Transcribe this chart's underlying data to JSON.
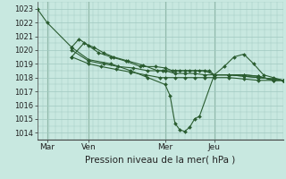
{
  "background_color": "#c8e8e0",
  "plot_bg_color": "#c8e8e0",
  "grid_color": "#a0c8c0",
  "line_color": "#2a5c30",
  "marker_color": "#2a5c30",
  "ylim": [
    1013.5,
    1023.5
  ],
  "yticks": [
    1014,
    1015,
    1016,
    1017,
    1018,
    1019,
    1020,
    1021,
    1022,
    1023
  ],
  "xlabel": "Pression niveau de la mer( hPa )",
  "xtick_labels": [
    "Mar",
    "Ven",
    "Mer",
    "Jeu"
  ],
  "xtick_positions": [
    0.04,
    0.21,
    0.52,
    0.72
  ],
  "vline_positions": [
    0.04,
    0.21,
    0.52,
    0.72
  ],
  "lines": [
    {
      "x": [
        0.0,
        0.04,
        0.14,
        0.21,
        0.3,
        0.38,
        0.45,
        0.52,
        0.54,
        0.56,
        0.58,
        0.6,
        0.62,
        0.64,
        0.66,
        0.72,
        0.78,
        0.84,
        0.9,
        0.96,
        1.0
      ],
      "y": [
        1023,
        1022,
        1020.2,
        1019.3,
        1019.0,
        1018.5,
        1018.0,
        1017.5,
        1016.7,
        1014.7,
        1014.2,
        1014.1,
        1014.4,
        1015.0,
        1015.2,
        1018.2,
        1018.2,
        1018.2,
        1018.1,
        1017.8,
        1017.8
      ]
    },
    {
      "x": [
        0.14,
        0.17,
        0.21,
        0.25,
        0.3,
        0.36,
        0.42,
        0.48,
        0.52,
        0.55,
        0.58,
        0.62,
        0.66,
        0.7,
        0.72,
        0.78,
        0.84,
        0.9,
        0.96,
        1.0
      ],
      "y": [
        1020.2,
        1020.8,
        1020.3,
        1019.8,
        1019.5,
        1019.2,
        1018.8,
        1018.8,
        1018.7,
        1018.5,
        1018.5,
        1018.5,
        1018.5,
        1018.5,
        1018.2,
        1018.2,
        1018.2,
        1018.1,
        1017.8,
        1017.8
      ]
    },
    {
      "x": [
        0.14,
        0.19,
        0.23,
        0.27,
        0.31,
        0.37,
        0.43,
        0.49,
        0.52,
        0.56,
        0.6,
        0.64,
        0.68,
        0.72,
        0.78,
        0.84,
        0.9,
        0.96,
        1.0
      ],
      "y": [
        1019.5,
        1020.5,
        1020.2,
        1019.8,
        1019.5,
        1019.2,
        1018.9,
        1018.5,
        1018.5,
        1018.5,
        1018.5,
        1018.5,
        1018.5,
        1018.2,
        1018.2,
        1018.1,
        1018.0,
        1017.9,
        1017.8
      ]
    },
    {
      "x": [
        0.14,
        0.21,
        0.27,
        0.33,
        0.39,
        0.45,
        0.51,
        0.52,
        0.56,
        0.6,
        0.64,
        0.68,
        0.72,
        0.78,
        0.84,
        0.9,
        0.96,
        1.0
      ],
      "y": [
        1020.0,
        1019.2,
        1019.0,
        1018.8,
        1018.7,
        1018.5,
        1018.5,
        1018.5,
        1018.3,
        1018.3,
        1018.3,
        1018.2,
        1018.2,
        1018.2,
        1018.1,
        1018.0,
        1017.9,
        1017.8
      ]
    },
    {
      "x": [
        0.14,
        0.21,
        0.26,
        0.32,
        0.38,
        0.44,
        0.5,
        0.52,
        0.56,
        0.6,
        0.64,
        0.68,
        0.72,
        0.78,
        0.84,
        0.9,
        0.96,
        1.0
      ],
      "y": [
        1019.5,
        1019.0,
        1018.8,
        1018.6,
        1018.4,
        1018.2,
        1018.0,
        1018.0,
        1018.0,
        1018.0,
        1018.0,
        1018.0,
        1018.0,
        1018.0,
        1017.9,
        1017.8,
        1017.8,
        1017.8
      ]
    },
    {
      "x": [
        0.72,
        0.76,
        0.8,
        0.84,
        0.88,
        0.92,
        0.96,
        1.0
      ],
      "y": [
        1018.2,
        1018.8,
        1019.5,
        1019.7,
        1019.0,
        1018.2,
        1018.0,
        1017.8
      ]
    }
  ]
}
